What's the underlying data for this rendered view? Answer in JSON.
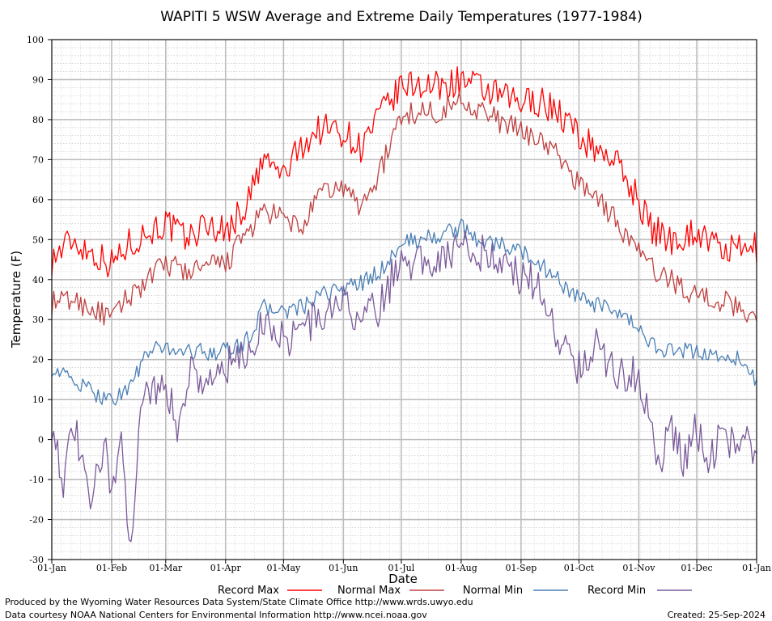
{
  "chart_data": {
    "type": "line",
    "title": "WAPITI 5 WSW Average and Extreme Daily Temperatures (1977-1984)",
    "xlabel": "Date",
    "ylabel": "Temperature (F)",
    "ylim": [
      -30,
      100
    ],
    "y_ticks": [
      "100",
      "90",
      "80",
      "70",
      "60",
      "50",
      "40",
      "30",
      "20",
      "10",
      "0",
      "-10",
      "-20",
      "-30"
    ],
    "x_ticks": [
      "01-Jan",
      "01-Feb",
      "01-Mar",
      "01-Apr",
      "01-May",
      "01-Jun",
      "01-Jul",
      "01-Aug",
      "01-Sep",
      "01-Oct",
      "01-Nov",
      "01-Dec",
      "01-Jan"
    ],
    "x_tick_days": [
      0,
      31,
      59,
      90,
      120,
      151,
      181,
      212,
      243,
      273,
      304,
      334,
      365
    ],
    "grid": true,
    "legend_position": "bottom",
    "series": [
      {
        "name": "Record Max",
        "color": "#ff0000",
        "days": [
          0,
          10,
          20,
          31,
          40,
          50,
          59,
          70,
          80,
          90,
          100,
          110,
          120,
          130,
          140,
          151,
          160,
          170,
          181,
          190,
          200,
          212,
          220,
          230,
          243,
          250,
          260,
          273,
          280,
          290,
          304,
          310,
          320,
          334,
          345,
          355,
          365
        ],
        "values": [
          45,
          50,
          47,
          44,
          49,
          52,
          54,
          50,
          54,
          52,
          58,
          70,
          66,
          74,
          78,
          77,
          73,
          81,
          88,
          89,
          88,
          90,
          88,
          86,
          84,
          85,
          83,
          76,
          73,
          71,
          60,
          53,
          50,
          52,
          48,
          47,
          48
        ]
      },
      {
        "name": "Normal Max",
        "color": "#c04040",
        "days": [
          0,
          10,
          20,
          31,
          40,
          50,
          59,
          70,
          80,
          90,
          100,
          110,
          120,
          130,
          140,
          151,
          160,
          170,
          181,
          190,
          200,
          212,
          220,
          230,
          243,
          250,
          260,
          273,
          280,
          290,
          304,
          310,
          320,
          334,
          345,
          355,
          365
        ],
        "values": [
          34,
          35,
          33,
          30,
          36,
          40,
          44,
          42,
          43,
          44,
          51,
          57,
          55,
          53,
          62,
          63,
          58,
          67,
          81,
          82,
          82,
          85,
          83,
          80,
          77,
          76,
          72,
          64,
          62,
          56,
          47,
          43,
          40,
          36,
          35,
          33,
          31
        ]
      },
      {
        "name": "Normal Min",
        "color": "#4a7fb5",
        "days": [
          0,
          10,
          20,
          31,
          40,
          50,
          59,
          70,
          80,
          90,
          100,
          110,
          120,
          130,
          140,
          151,
          160,
          170,
          181,
          190,
          200,
          212,
          220,
          230,
          243,
          250,
          260,
          273,
          280,
          290,
          304,
          310,
          320,
          334,
          345,
          355,
          365
        ],
        "values": [
          18,
          15,
          12,
          10,
          13,
          22,
          23,
          22,
          22,
          22,
          24,
          33,
          32,
          33,
          36,
          38,
          39,
          42,
          49,
          50,
          51,
          53,
          50,
          49,
          47,
          45,
          41,
          35,
          34,
          32,
          28,
          24,
          22,
          22,
          21,
          20,
          15
        ]
      },
      {
        "name": "Record Min",
        "color": "#7a5a9a",
        "days": [
          0,
          6,
          12,
          20,
          27,
          31,
          36,
          41,
          46,
          52,
          59,
          65,
          72,
          80,
          90,
          100,
          110,
          120,
          130,
          140,
          151,
          160,
          170,
          181,
          190,
          200,
          212,
          220,
          230,
          243,
          250,
          256,
          265,
          273,
          280,
          290,
          304,
          310,
          315,
          320,
          327,
          334,
          340,
          348,
          355,
          360,
          365
        ],
        "values": [
          5,
          -10,
          3,
          -18,
          0,
          -12,
          -3,
          -25,
          8,
          14,
          12,
          4,
          18,
          14,
          18,
          20,
          30,
          25,
          28,
          31,
          34,
          30,
          33,
          46,
          44,
          46,
          48,
          47,
          46,
          40,
          40,
          32,
          24,
          18,
          24,
          18,
          16,
          3,
          -6,
          4,
          -6,
          3,
          -5,
          2,
          -3,
          5,
          -6
        ]
      }
    ]
  },
  "legend": {
    "items": [
      "Record Max",
      "Normal Max",
      "Normal Min",
      "Record Min"
    ]
  },
  "footer": {
    "left_line1": "Produced by the Wyoming Water Resources Data System/State Climate Office http://www.wrds.uwyo.edu",
    "left_line2": "Data courtesy NOAA National Centers for Environmental Information http://www.ncei.noaa.gov",
    "created": "Created:  25-Sep-2024"
  }
}
